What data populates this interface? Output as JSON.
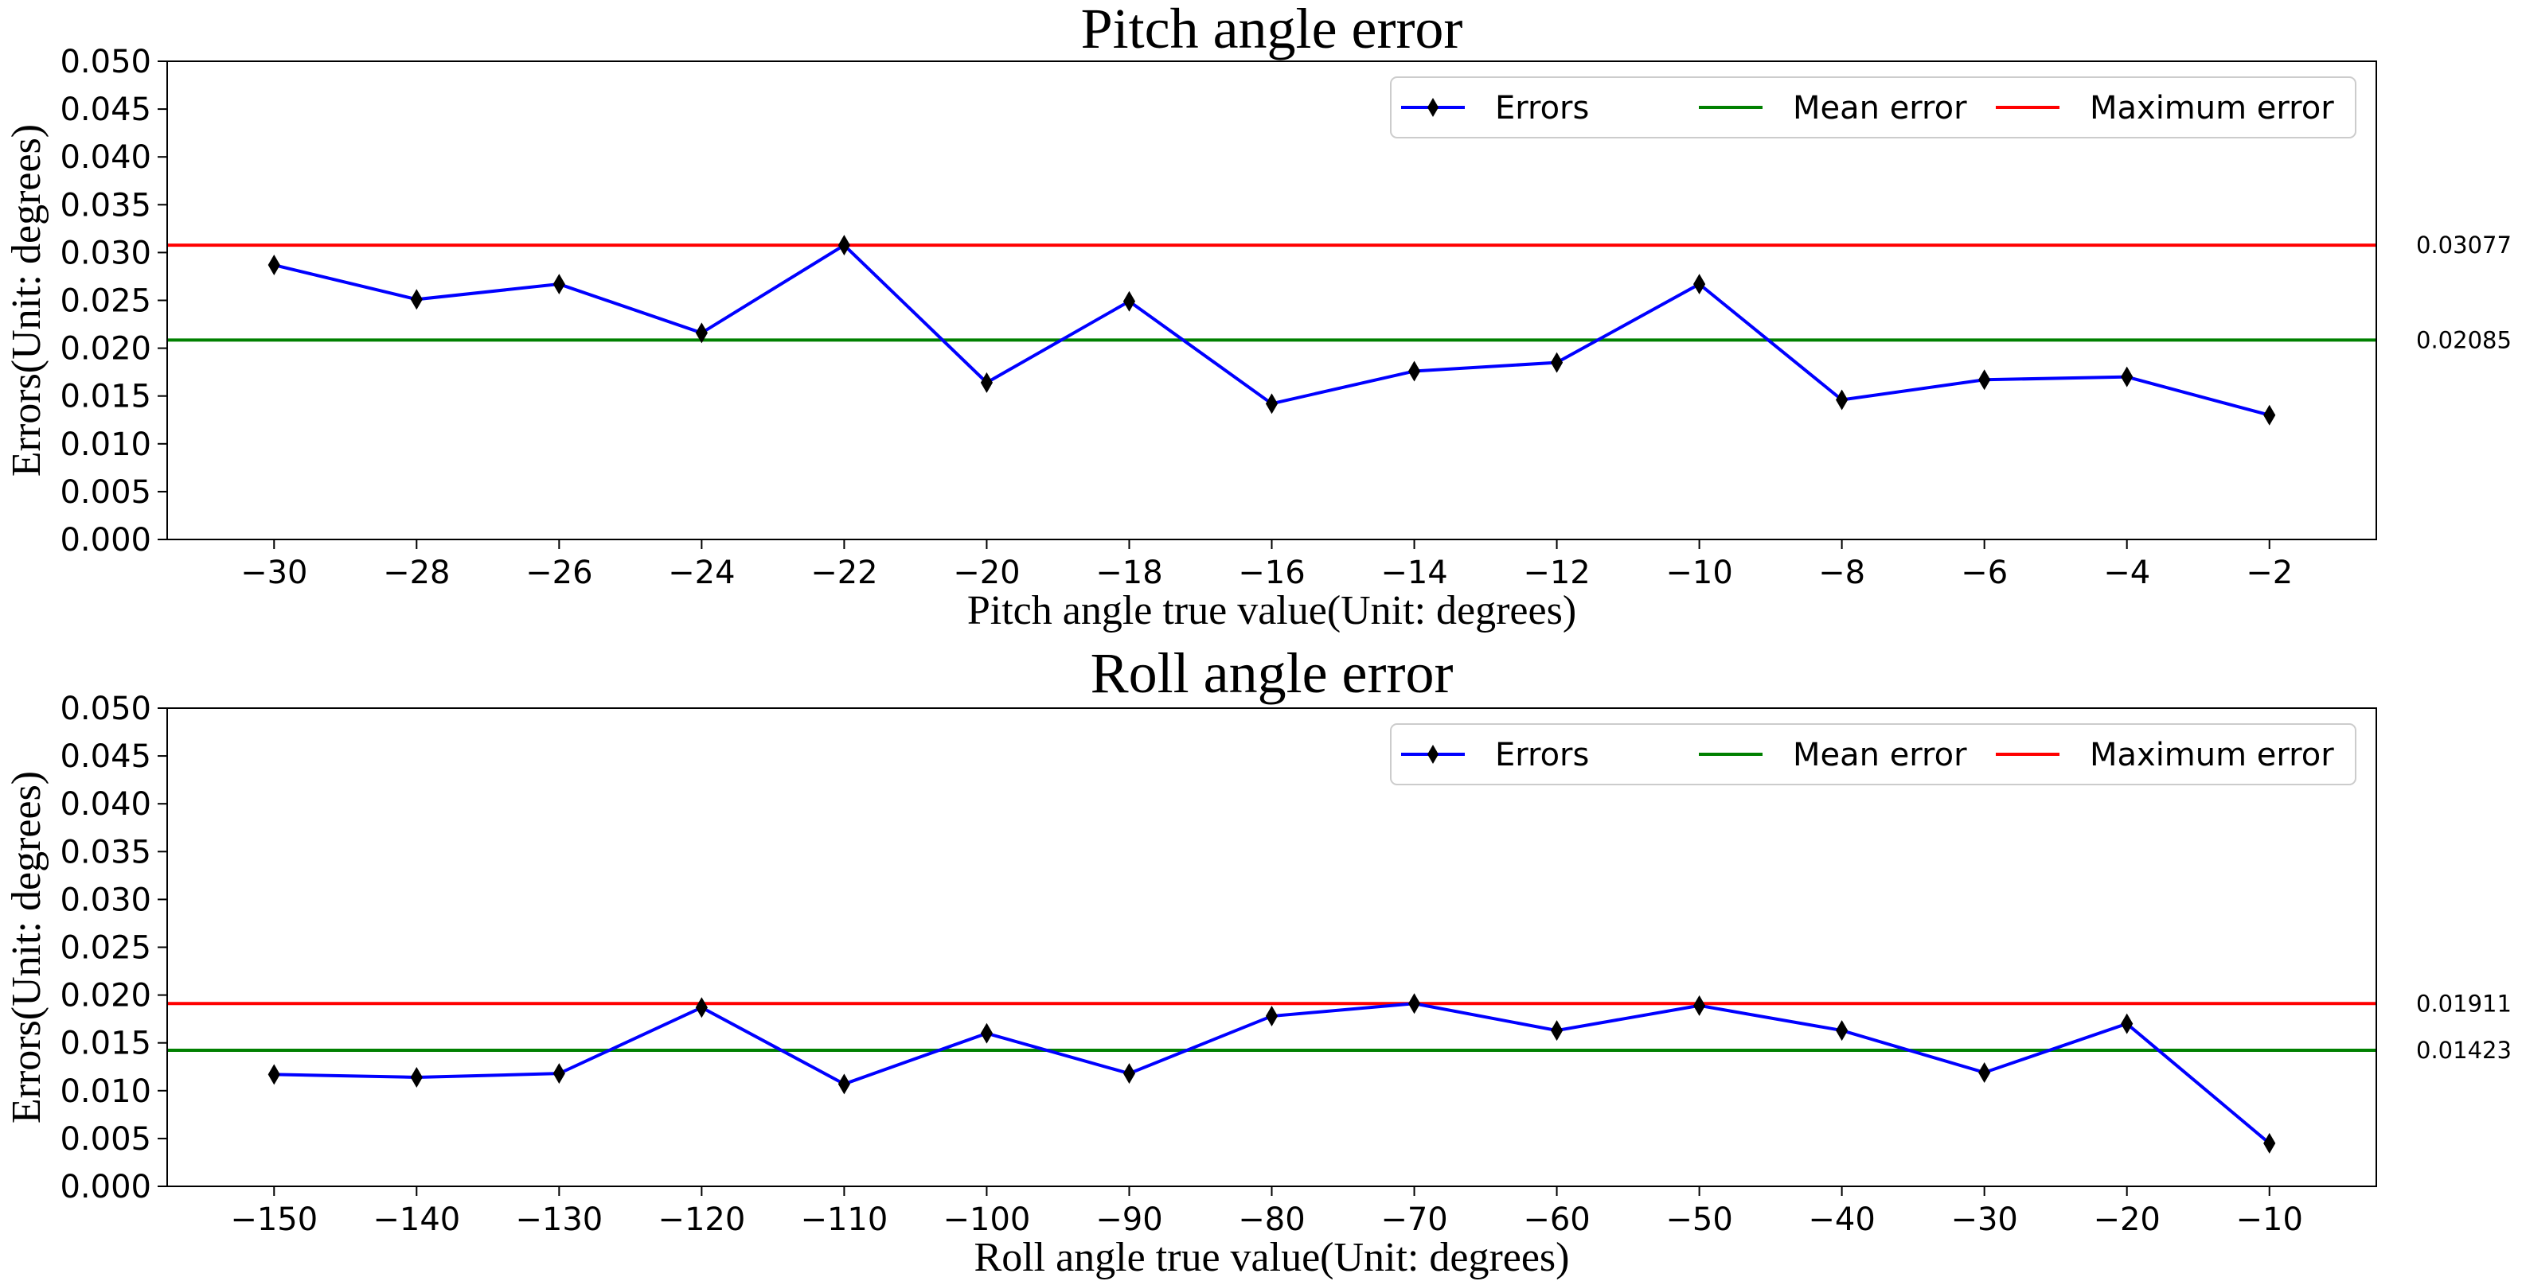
{
  "chart_data": [
    {
      "type": "line",
      "title": "Pitch angle error",
      "xlabel": "Pitch angle true value(Unit: degrees)",
      "ylabel": "Errors(Unit: degrees)",
      "x": [
        -30,
        -28,
        -26,
        -24,
        -22,
        -20,
        -18,
        -16,
        -14,
        -12,
        -10,
        -8,
        -6,
        -4,
        -2
      ],
      "xlim": [
        -31.5,
        -0.5
      ],
      "ylim": [
        0,
        0.05
      ],
      "yticks": [
        "0.000",
        "0.005",
        "0.010",
        "0.015",
        "0.020",
        "0.025",
        "0.030",
        "0.035",
        "0.040",
        "0.045",
        "0.050"
      ],
      "xticks": [
        "−30",
        "−28",
        "−26",
        "−24",
        "−22",
        "−20",
        "−18",
        "−16",
        "−14",
        "−12",
        "−10",
        "−8",
        "−6",
        "−4",
        "−2"
      ],
      "series": [
        {
          "name": "Errors",
          "color": "#0000ff",
          "marker": "thin_diamond",
          "values": [
            0.0287,
            0.0251,
            0.0267,
            0.0216,
            0.03077,
            0.0164,
            0.0249,
            0.0142,
            0.0176,
            0.0185,
            0.0267,
            0.0146,
            0.0167,
            0.017,
            0.013
          ]
        },
        {
          "name": "Mean error",
          "color": "#008000",
          "value": 0.02085
        },
        {
          "name": "Maximum error",
          "color": "#ff0000",
          "value": 0.03077
        }
      ],
      "annotations": {
        "max_label": "0.03077",
        "mean_label": "0.02085"
      },
      "legend": "top-right",
      "grid": false
    },
    {
      "type": "line",
      "title": "Roll angle error",
      "xlabel": "Roll angle true value(Unit: degrees)",
      "ylabel": "Errors(Unit: degrees)",
      "x": [
        -150,
        -140,
        -130,
        -120,
        -110,
        -100,
        -90,
        -80,
        -70,
        -60,
        -50,
        -40,
        -30,
        -20,
        -10
      ],
      "xlim": [
        -157.5,
        -2.5
      ],
      "ylim": [
        0,
        0.05
      ],
      "yticks": [
        "0.000",
        "0.005",
        "0.010",
        "0.015",
        "0.020",
        "0.025",
        "0.030",
        "0.035",
        "0.040",
        "0.045",
        "0.050"
      ],
      "xticks": [
        "−150",
        "−140",
        "−130",
        "−120",
        "−110",
        "−100",
        "−90",
        "−80",
        "−70",
        "−60",
        "−50",
        "−40",
        "−30",
        "−20",
        "−10"
      ],
      "series": [
        {
          "name": "Errors",
          "color": "#0000ff",
          "marker": "thin_diamond",
          "values": [
            0.0117,
            0.0114,
            0.0118,
            0.0187,
            0.0107,
            0.016,
            0.0118,
            0.0178,
            0.01911,
            0.0163,
            0.0189,
            0.0163,
            0.0119,
            0.017,
            0.0045
          ]
        },
        {
          "name": "Mean error",
          "color": "#008000",
          "value": 0.01423
        },
        {
          "name": "Maximum error",
          "color": "#ff0000",
          "value": 0.01911
        }
      ],
      "annotations": {
        "max_label": "0.01911",
        "mean_label": "0.01423"
      },
      "legend": "top-right",
      "grid": false
    }
  ]
}
